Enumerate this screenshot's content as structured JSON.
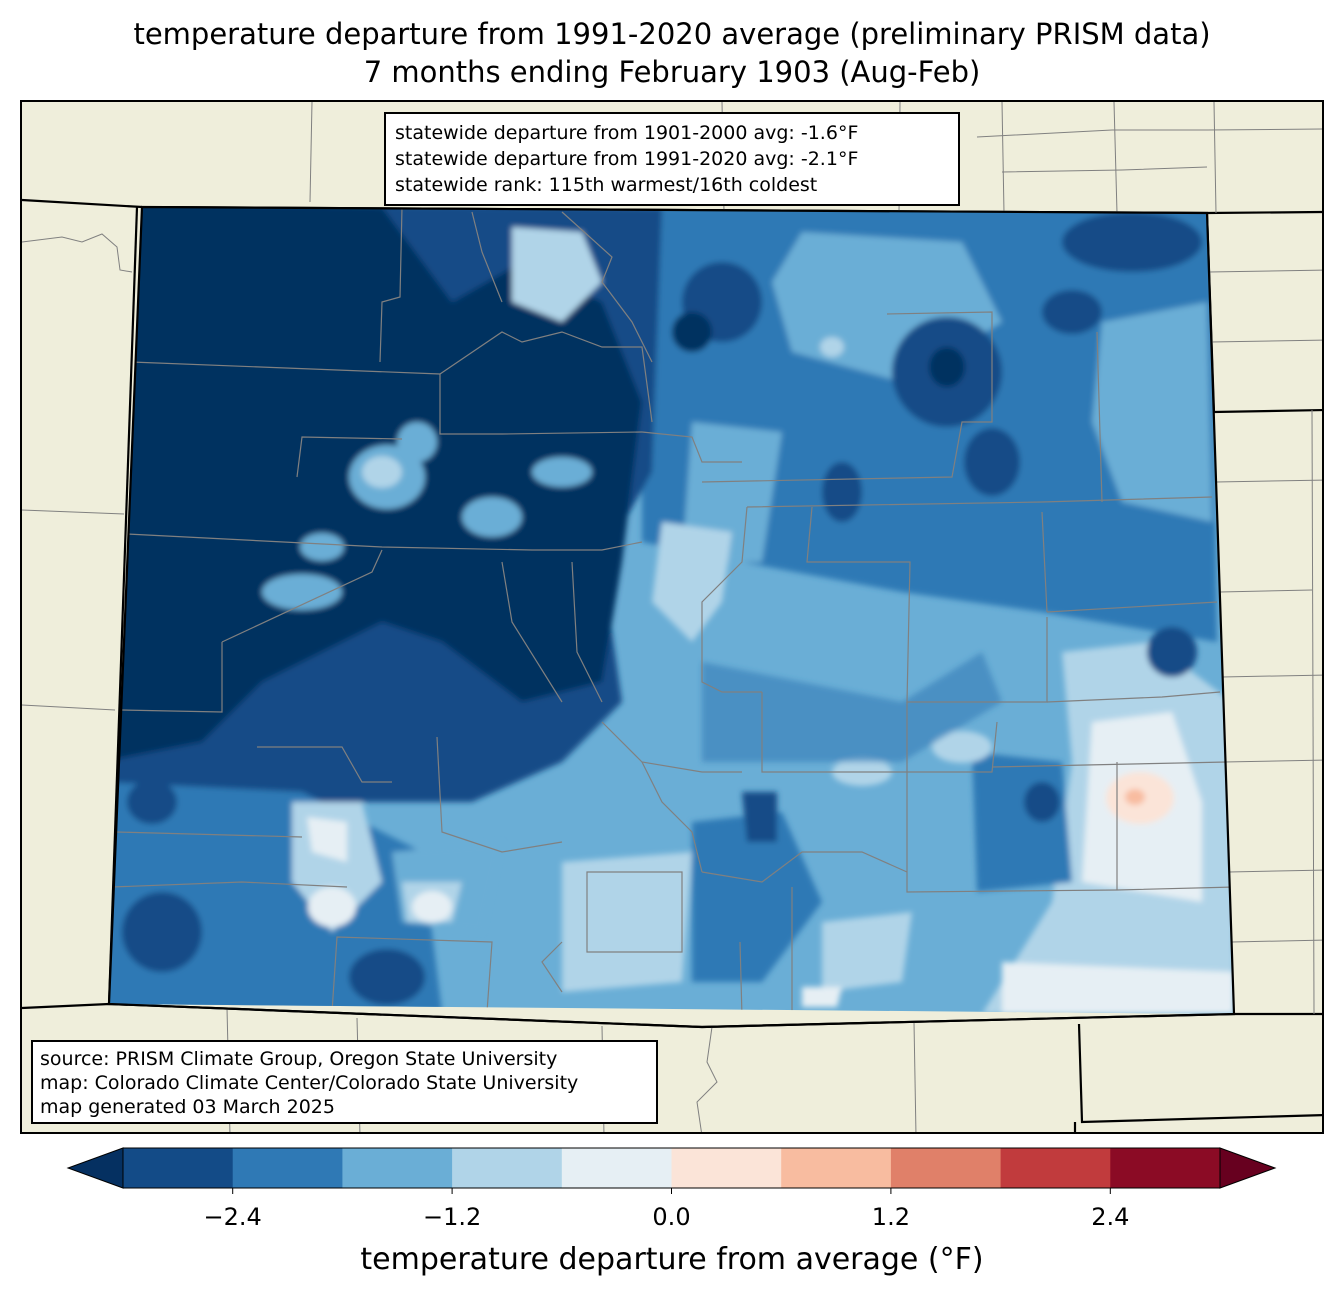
{
  "title": {
    "line1": "temperature departure from 1991-2020 average (preliminary PRISM data)",
    "line2": "7 months ending February 1903 (Aug-Feb)"
  },
  "stats": {
    "line1": "statewide departure from 1901-2000 avg: -1.6°F",
    "line2": "statewide departure from 1991-2020 avg: -2.1°F",
    "line3": "statewide rank: 115th warmest/16th coldest"
  },
  "source": {
    "line1": "source: PRISM Climate Group, Oregon State University",
    "line2": "map: Colorado Climate Center/Colorado State University",
    "line3": "map generated 03 March 2025"
  },
  "colorbar": {
    "label": "temperature departure from average (°F)",
    "ticks": [
      "−2.4",
      "−1.2",
      "0.0",
      "1.2",
      "2.4"
    ],
    "tick_values": [
      -2.4,
      -1.2,
      0.0,
      1.2,
      2.4
    ],
    "range": [
      -3.0,
      3.0
    ],
    "step": 0.6,
    "under_color": "#053061",
    "over_color": "#67001f",
    "bins": [
      "#134b87",
      "#2f79b5",
      "#6aaed6",
      "#b0d4e8",
      "#e6eff4",
      "#fbe4d8",
      "#f8bca0",
      "#e08069",
      "#c13b3d",
      "#8b0b25"
    ]
  },
  "map_colors": {
    "background": "#efeedb",
    "boundary": "#000000",
    "county_lines": "#808080"
  }
}
